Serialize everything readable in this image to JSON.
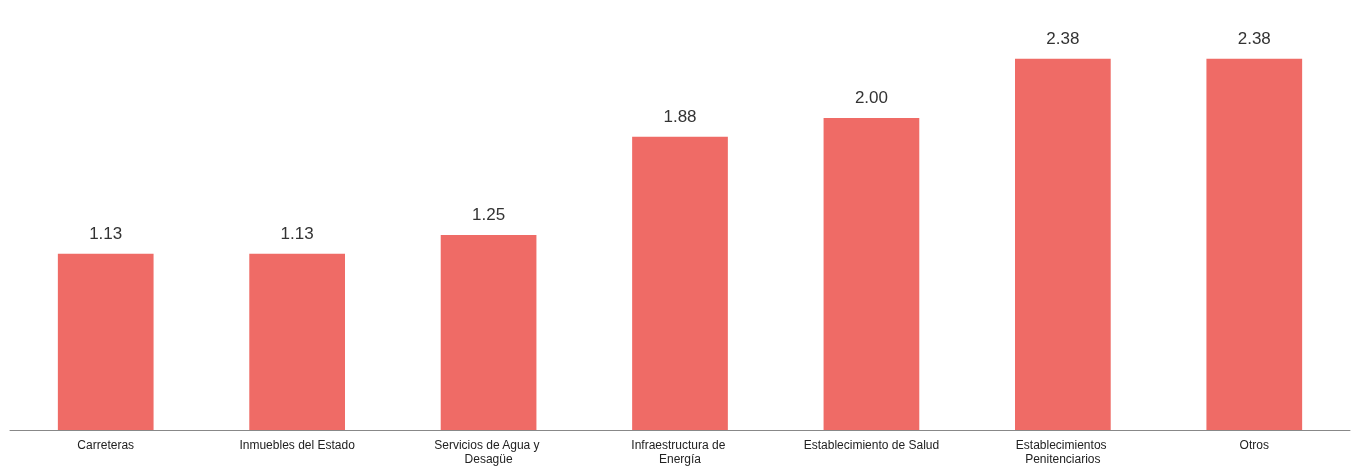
{
  "chart_data": {
    "type": "bar",
    "categories": [
      "Carreteras",
      "Inmuebles del Estado",
      "Servicios de Agua y Desagüe",
      "Infraestructura de Energía",
      "Establecimiento de Salud",
      "Establecimientos Penitenciarios",
      "Otros"
    ],
    "values": [
      1.13,
      1.13,
      1.25,
      1.88,
      2.0,
      2.38,
      2.38
    ],
    "value_labels": [
      "1.13",
      "1.13",
      "1.25",
      "1.88",
      "2.00",
      "2.38",
      "2.38"
    ],
    "color": "#ef6b66"
  }
}
